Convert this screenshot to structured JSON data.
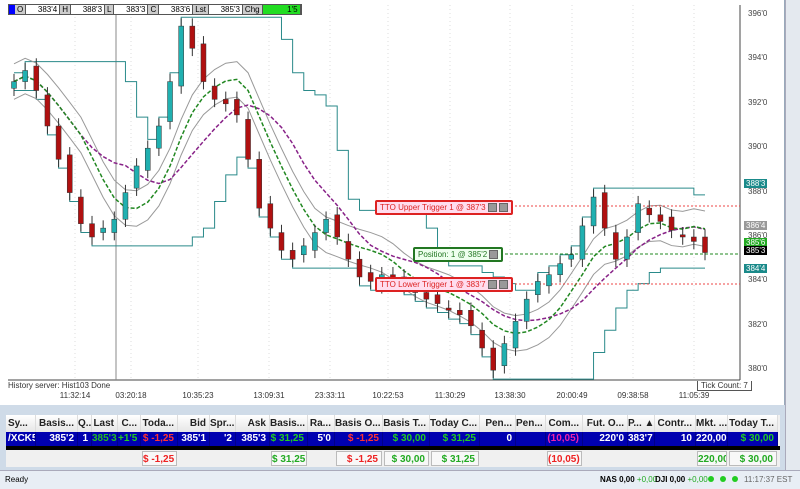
{
  "quote_bar": [
    {
      "label": "O",
      "value": "383'4"
    },
    {
      "label": "H",
      "value": "388'3"
    },
    {
      "label": "L",
      "value": "383'3"
    },
    {
      "label": "C",
      "value": "383'6"
    },
    {
      "label": "Lst",
      "value": "385'3"
    },
    {
      "label": "Chg",
      "value": "1'5"
    }
  ],
  "chart_data": {
    "type": "candlestick",
    "y_ticks": [
      "396'0",
      "394'0",
      "392'0",
      "390'0",
      "388'0",
      "386'0",
      "384'0",
      "382'0",
      "380'0"
    ],
    "ylim": [
      379.5,
      396.3
    ],
    "x_ticks": [
      "11:32:14",
      "03:20:18",
      "10:35:23",
      "13:09:31",
      "23:33:11",
      "10:22:53",
      "11:30:29",
      "13:38:30",
      "20:00:49",
      "09:38:58",
      "11:05:39"
    ],
    "price_path": [
      393,
      393.5,
      392.6,
      391,
      389.5,
      388,
      386.6,
      386,
      386.4,
      386.8,
      388,
      389.2,
      390,
      391,
      393,
      395.5,
      394.5,
      393,
      392.2,
      392,
      391.5,
      389.5,
      387.3,
      386.4,
      385.4,
      385,
      385.6,
      386.2,
      386.8,
      386,
      385,
      384.2,
      384,
      384.3,
      384,
      383.8,
      383.5,
      383.2,
      383,
      382.7,
      382.5,
      382,
      381,
      380,
      381.2,
      382.2,
      383.2,
      384,
      384.3,
      384.8,
      385.2,
      386.5,
      387.8,
      386.4,
      385,
      386,
      387.5,
      387,
      386.7,
      386.3,
      386,
      385.8,
      385.3
    ],
    "price_labels": [
      {
        "text": "388'3",
        "color": "#1a8a8a"
      },
      {
        "text": "386'4",
        "color": "#999999"
      },
      {
        "text": "385'6",
        "color": "#22aa22"
      },
      {
        "text": "385'3",
        "color": "#000000"
      },
      {
        "text": "384'4",
        "color": "#1a8a8a"
      }
    ],
    "up_color": "#20b0b0",
    "down_color": "#b01010"
  },
  "orders": {
    "upper": "TTO Upper Trigger 1 @ 387'3",
    "position": "Position: 1 @ 385'2",
    "lower": "TTO Lower Trigger 1 @ 383'7"
  },
  "history": "History server: Hist103 Done",
  "tick_count": "Tick Count:  7",
  "grid": {
    "headers": [
      "Sy...",
      "Basis...",
      "Q...",
      "Last",
      "C...",
      "Toda...",
      "Bid",
      "Spr...",
      "Ask",
      "Basis...",
      "Ra...",
      "Basis O...",
      "Basis T...",
      "Today C...",
      "Pen...",
      "Pen...",
      "Com...",
      "Fut. O...",
      "P... ▲",
      "Contr...",
      "Mkt. ...",
      "Today T..."
    ],
    "row": [
      "/XCK5",
      "385'2",
      "1",
      "385'3",
      "+1'5",
      "$ -1,25",
      "385'1",
      "'2",
      "385'3",
      "$ 31,25",
      "5'0",
      "$ -1,25",
      "$ 30,00",
      "$ 31,25",
      "0",
      "",
      "(10,05)",
      "220'0",
      "383'7",
      "10",
      "220,00",
      "$ 30,00"
    ],
    "totals": [
      "",
      "",
      "",
      "",
      "",
      "$ -1,25",
      "",
      "",
      "",
      "$ 31,25",
      "",
      "$ -1,25",
      "$ 30,00",
      "$ 31,25",
      "",
      "",
      "(10,05)",
      "",
      "",
      "",
      "220,00",
      "$ 30,00"
    ]
  },
  "status": {
    "text": "Ready",
    "nas": "NAS 0,00",
    "nas_chg": "+0,00",
    "dji": "DJI 0,00",
    "dji_chg": "+0,00",
    "time": "11:17:37 EST"
  }
}
